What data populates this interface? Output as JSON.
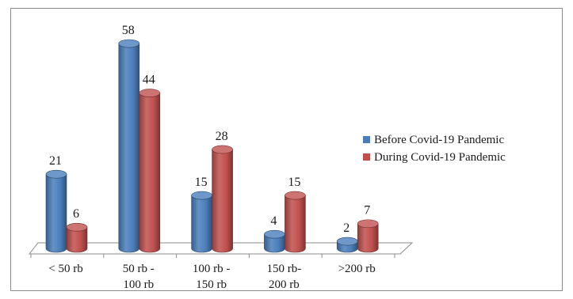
{
  "chart_data": {
    "type": "bar",
    "title": "",
    "xlabel": "",
    "ylabel": "",
    "categories": [
      [
        "< 50 rb"
      ],
      [
        "50 rb -",
        "100 rb"
      ],
      [
        "100 rb -",
        "150 rb"
      ],
      [
        "150 rb-",
        "200 rb"
      ],
      [
        ">200 rb"
      ]
    ],
    "series": [
      {
        "name": "Before Covid-19 Pandemic",
        "values": [
          21,
          58,
          15,
          4,
          2
        ],
        "color": "#4a7ebb"
      },
      {
        "name": "During Covid-19 Pandemic",
        "values": [
          6,
          44,
          28,
          15,
          7
        ],
        "color": "#c0504d"
      }
    ],
    "ylim": [
      0,
      58
    ],
    "grid": false,
    "legend": "right"
  }
}
